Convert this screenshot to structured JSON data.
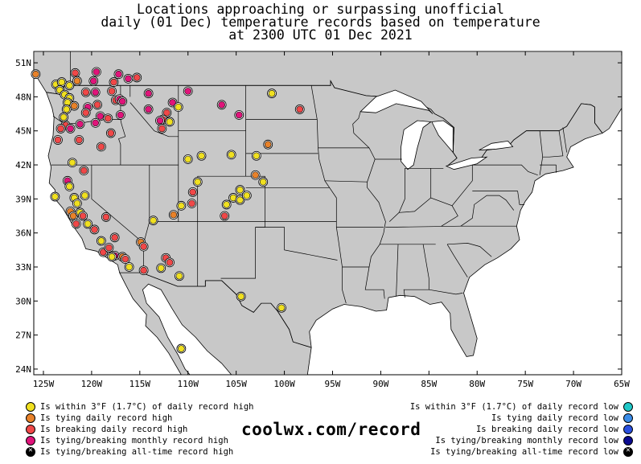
{
  "title": {
    "line1": "Locations approaching or surpassing unofficial",
    "line2": "daily (01 Dec) temperature records based on temperature",
    "line3": "at 2300 UTC 01 Dec 2021"
  },
  "map": {
    "lat_labels": [
      "51N",
      "48N",
      "45N",
      "42N",
      "39N",
      "36N",
      "33N",
      "30N",
      "27N",
      "24N"
    ],
    "lat_values": [
      51,
      48,
      45,
      42,
      39,
      36,
      33,
      30,
      27,
      24
    ],
    "lon_labels": [
      "125W",
      "120W",
      "115W",
      "110W",
      "105W",
      "100W",
      "95W",
      "90W",
      "85W",
      "80W",
      "75W",
      "70W",
      "65W"
    ],
    "lon_values": [
      -125,
      -120,
      -115,
      -110,
      -105,
      -100,
      -95,
      -90,
      -85,
      -80,
      -75,
      -70,
      -65
    ],
    "bounds": {
      "lon_min": -126,
      "lon_max": -65,
      "lat_min": 23.5,
      "lat_max": 52
    },
    "colors": {
      "land": "#c8c8c8",
      "background": "#ffffff",
      "near_high": "#f0e020",
      "tie_high": "#e8822a",
      "break_high": "#f04848",
      "monthly_high": "#e0147a",
      "near_low": "#20c8c8",
      "tie_low": "#3a8ce8",
      "break_low": "#2a50e0",
      "monthly_low": "#0a0a90"
    },
    "points": [
      {
        "lon": -125.8,
        "lat": 50.0,
        "k": "tie_high"
      },
      {
        "lon": -123.7,
        "lat": 49.1,
        "k": "near_high"
      },
      {
        "lon": -123.1,
        "lat": 49.3,
        "k": "near_high"
      },
      {
        "lon": -122.3,
        "lat": 49.0,
        "k": "near_high"
      },
      {
        "lon": -121.7,
        "lat": 50.1,
        "k": "break_high"
      },
      {
        "lon": -119.5,
        "lat": 50.2,
        "k": "monthly_high"
      },
      {
        "lon": -117.2,
        "lat": 50.0,
        "k": "monthly_high"
      },
      {
        "lon": -121.5,
        "lat": 49.4,
        "k": "tie_high"
      },
      {
        "lon": -119.8,
        "lat": 49.4,
        "k": "monthly_high"
      },
      {
        "lon": -117.7,
        "lat": 49.3,
        "k": "break_high"
      },
      {
        "lon": -116.2,
        "lat": 49.6,
        "k": "monthly_high"
      },
      {
        "lon": -115.3,
        "lat": 49.7,
        "k": "break_high"
      },
      {
        "lon": -123.3,
        "lat": 48.6,
        "k": "near_high"
      },
      {
        "lon": -122.8,
        "lat": 48.2,
        "k": "near_high"
      },
      {
        "lon": -122.3,
        "lat": 47.9,
        "k": "near_high"
      },
      {
        "lon": -122.5,
        "lat": 47.5,
        "k": "near_high"
      },
      {
        "lon": -121.8,
        "lat": 47.2,
        "k": "tie_high"
      },
      {
        "lon": -122.6,
        "lat": 46.9,
        "k": "near_high"
      },
      {
        "lon": -120.6,
        "lat": 48.4,
        "k": "break_high"
      },
      {
        "lon": -119.6,
        "lat": 48.4,
        "k": "monthly_high"
      },
      {
        "lon": -117.9,
        "lat": 48.5,
        "k": "break_high"
      },
      {
        "lon": -117.5,
        "lat": 47.7,
        "k": "break_high"
      },
      {
        "lon": -117.1,
        "lat": 47.8,
        "k": "monthly_high"
      },
      {
        "lon": -119.4,
        "lat": 47.3,
        "k": "break_high"
      },
      {
        "lon": -120.4,
        "lat": 47.1,
        "k": "monthly_high"
      },
      {
        "lon": -120.6,
        "lat": 46.6,
        "k": "break_high"
      },
      {
        "lon": -119.1,
        "lat": 46.3,
        "k": "monthly_high"
      },
      {
        "lon": -118.3,
        "lat": 46.1,
        "k": "break_high"
      },
      {
        "lon": -117.0,
        "lat": 46.4,
        "k": "monthly_high"
      },
      {
        "lon": -116.8,
        "lat": 47.6,
        "k": "monthly_high"
      },
      {
        "lon": -114.1,
        "lat": 48.3,
        "k": "monthly_high"
      },
      {
        "lon": -111.6,
        "lat": 47.5,
        "k": "monthly_high"
      },
      {
        "lon": -110.0,
        "lat": 48.5,
        "k": "monthly_high"
      },
      {
        "lon": -112.2,
        "lat": 46.6,
        "k": "break_high"
      },
      {
        "lon": -114.1,
        "lat": 46.9,
        "k": "monthly_high"
      },
      {
        "lon": -112.6,
        "lat": 46.0,
        "k": "break_high"
      },
      {
        "lon": -111.0,
        "lat": 47.1,
        "k": "near_high"
      },
      {
        "lon": -112.9,
        "lat": 45.9,
        "k": "monthly_high"
      },
      {
        "lon": -111.9,
        "lat": 45.8,
        "k": "near_high"
      },
      {
        "lon": -112.7,
        "lat": 45.2,
        "k": "break_high"
      },
      {
        "lon": -106.5,
        "lat": 47.3,
        "k": "monthly_high"
      },
      {
        "lon": -104.7,
        "lat": 46.4,
        "k": "monthly_high"
      },
      {
        "lon": -101.3,
        "lat": 48.3,
        "k": "near_high"
      },
      {
        "lon": -98.4,
        "lat": 46.9,
        "k": "break_high"
      },
      {
        "lon": -122.7,
        "lat": 45.5,
        "k": "break_high"
      },
      {
        "lon": -123.2,
        "lat": 45.2,
        "k": "break_high"
      },
      {
        "lon": -122.2,
        "lat": 45.2,
        "k": "monthly_high"
      },
      {
        "lon": -123.5,
        "lat": 44.2,
        "k": "break_high"
      },
      {
        "lon": -121.3,
        "lat": 44.2,
        "k": "break_high"
      },
      {
        "lon": -119.0,
        "lat": 43.6,
        "k": "break_high"
      },
      {
        "lon": -121.2,
        "lat": 45.6,
        "k": "monthly_high"
      },
      {
        "lon": -119.6,
        "lat": 45.7,
        "k": "monthly_high"
      },
      {
        "lon": -118.0,
        "lat": 44.8,
        "k": "break_high"
      },
      {
        "lon": -122.9,
        "lat": 46.2,
        "k": "near_high"
      },
      {
        "lon": -122.0,
        "lat": 42.2,
        "k": "near_high"
      },
      {
        "lon": -120.8,
        "lat": 41.5,
        "k": "break_high"
      },
      {
        "lon": -122.5,
        "lat": 40.6,
        "k": "monthly_high"
      },
      {
        "lon": -123.8,
        "lat": 39.2,
        "k": "near_high"
      },
      {
        "lon": -122.3,
        "lat": 40.1,
        "k": "near_high"
      },
      {
        "lon": -121.8,
        "lat": 39.1,
        "k": "near_high"
      },
      {
        "lon": -120.7,
        "lat": 39.3,
        "k": "near_high"
      },
      {
        "lon": -121.5,
        "lat": 38.6,
        "k": "near_high"
      },
      {
        "lon": -122.2,
        "lat": 37.9,
        "k": "tie_high"
      },
      {
        "lon": -121.9,
        "lat": 37.5,
        "k": "tie_high"
      },
      {
        "lon": -121.2,
        "lat": 37.8,
        "k": "near_high"
      },
      {
        "lon": -120.9,
        "lat": 37.5,
        "k": "break_high"
      },
      {
        "lon": -121.6,
        "lat": 36.8,
        "k": "break_high"
      },
      {
        "lon": -120.4,
        "lat": 36.8,
        "k": "near_high"
      },
      {
        "lon": -119.7,
        "lat": 36.3,
        "k": "break_high"
      },
      {
        "lon": -118.5,
        "lat": 37.4,
        "k": "break_high"
      },
      {
        "lon": -119.0,
        "lat": 35.3,
        "k": "near_high"
      },
      {
        "lon": -117.6,
        "lat": 35.6,
        "k": "break_high"
      },
      {
        "lon": -118.8,
        "lat": 34.3,
        "k": "break_high"
      },
      {
        "lon": -118.2,
        "lat": 34.7,
        "k": "break_high"
      },
      {
        "lon": -117.6,
        "lat": 34.0,
        "k": "monthly_high"
      },
      {
        "lon": -116.8,
        "lat": 33.9,
        "k": "tie_high"
      },
      {
        "lon": -116.5,
        "lat": 33.7,
        "k": "break_high"
      },
      {
        "lon": -117.9,
        "lat": 33.9,
        "k": "near_high"
      },
      {
        "lon": -116.1,
        "lat": 33.0,
        "k": "near_high"
      },
      {
        "lon": -114.6,
        "lat": 32.7,
        "k": "break_high"
      },
      {
        "lon": -114.9,
        "lat": 35.2,
        "k": "tie_high"
      },
      {
        "lon": -114.6,
        "lat": 34.8,
        "k": "break_high"
      },
      {
        "lon": -112.3,
        "lat": 33.8,
        "k": "break_high"
      },
      {
        "lon": -111.9,
        "lat": 33.4,
        "k": "break_high"
      },
      {
        "lon": -112.8,
        "lat": 32.9,
        "k": "near_high"
      },
      {
        "lon": -110.9,
        "lat": 32.2,
        "k": "near_high"
      },
      {
        "lon": -113.6,
        "lat": 37.1,
        "k": "near_high"
      },
      {
        "lon": -111.5,
        "lat": 37.6,
        "k": "tie_high"
      },
      {
        "lon": -110.7,
        "lat": 38.4,
        "k": "near_high"
      },
      {
        "lon": -109.6,
        "lat": 38.6,
        "k": "break_high"
      },
      {
        "lon": -109.5,
        "lat": 39.6,
        "k": "break_high"
      },
      {
        "lon": -109.0,
        "lat": 40.5,
        "k": "near_high"
      },
      {
        "lon": -106.0,
        "lat": 38.5,
        "k": "near_high"
      },
      {
        "lon": -106.2,
        "lat": 37.5,
        "k": "break_high"
      },
      {
        "lon": -105.3,
        "lat": 39.1,
        "k": "near_high"
      },
      {
        "lon": -104.6,
        "lat": 38.9,
        "k": "near_high"
      },
      {
        "lon": -104.6,
        "lat": 39.8,
        "k": "near_high"
      },
      {
        "lon": -103.9,
        "lat": 39.3,
        "k": "near_high"
      },
      {
        "lon": -102.2,
        "lat": 40.5,
        "k": "near_high"
      },
      {
        "lon": -103.0,
        "lat": 41.1,
        "k": "tie_high"
      },
      {
        "lon": -102.9,
        "lat": 42.8,
        "k": "near_high"
      },
      {
        "lon": -108.6,
        "lat": 42.8,
        "k": "near_high"
      },
      {
        "lon": -110.0,
        "lat": 42.5,
        "k": "near_high"
      },
      {
        "lon": -105.5,
        "lat": 42.9,
        "k": "near_high"
      },
      {
        "lon": -101.7,
        "lat": 43.8,
        "k": "tie_high"
      },
      {
        "lon": -104.5,
        "lat": 30.4,
        "k": "near_high"
      },
      {
        "lon": -100.3,
        "lat": 29.4,
        "k": "near_high"
      },
      {
        "lon": -110.7,
        "lat": 25.8,
        "k": "near_high"
      },
      {
        "lon": -104.9,
        "lat": 30.5,
        "k": "none"
      }
    ]
  },
  "legend_left": [
    {
      "label": "Is within 3°F (1.7°C) of daily record high",
      "color": "near_high",
      "x": false
    },
    {
      "label": "Is tying daily record high",
      "color": "tie_high",
      "x": false
    },
    {
      "label": "Is breaking daily record high",
      "color": "break_high",
      "x": false
    },
    {
      "label": "Is tying/breaking monthly record high",
      "color": "monthly_high",
      "x": false
    },
    {
      "label": "Is tying/breaking all-time record high",
      "color": "black",
      "x": true
    }
  ],
  "legend_right": [
    {
      "label": "Is within 3°F (1.7°C) of daily record low",
      "color": "near_low",
      "x": false
    },
    {
      "label": "Is tying daily record low",
      "color": "tie_low",
      "x": false
    },
    {
      "label": "Is breaking daily record low",
      "color": "break_low",
      "x": false
    },
    {
      "label": "Is tying/breaking monthly record low",
      "color": "monthly_low",
      "x": false
    },
    {
      "label": "Is tying/breaking all-time record low",
      "color": "black",
      "x": true
    }
  ],
  "site": "coolwx.com/record"
}
